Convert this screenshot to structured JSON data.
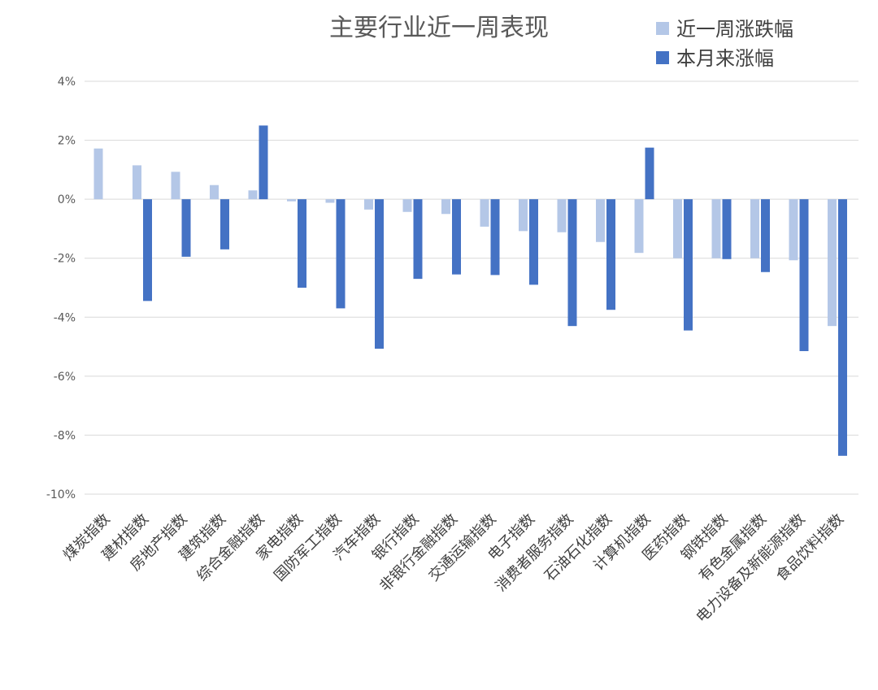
{
  "chart_data": {
    "type": "bar",
    "title": "主要行业近一周表现",
    "categories": [
      "煤炭指数",
      "建材指数",
      "房地产指数",
      "建筑指数",
      "综合金融指数",
      "家电指数",
      "国防军工指数",
      "汽车指数",
      "银行指数",
      "非银行金融指数",
      "交通运输指数",
      "电子指数",
      "消费者服务指数",
      "石油石化指数",
      "计算机指数",
      "医药指数",
      "钢铁指数",
      "有色金属指数",
      "电力设备及新能源指数",
      "食品饮料指数"
    ],
    "series": [
      {
        "name": "近一周涨跌幅",
        "color": "#b4c7e7",
        "values": [
          1.72,
          1.15,
          0.93,
          0.48,
          0.3,
          -0.07,
          -0.12,
          -0.35,
          -0.43,
          -0.5,
          -0.93,
          -1.08,
          -1.12,
          -1.45,
          -1.82,
          -2.0,
          -2.0,
          -2.0,
          -2.07,
          -4.3
        ]
      },
      {
        "name": "本月来涨幅",
        "color": "#4472c4",
        "values": [
          0,
          -3.45,
          -1.95,
          -1.7,
          2.5,
          -3.0,
          -3.7,
          -5.07,
          -2.7,
          -2.55,
          -2.57,
          -2.9,
          -4.3,
          -3.75,
          1.75,
          -4.45,
          -2.03,
          -2.47,
          -5.15,
          -8.7
        ]
      }
    ],
    "ylim": [
      -10,
      4
    ],
    "yticks": [
      4,
      2,
      0,
      -2,
      -4,
      -6,
      -8,
      -10
    ],
    "ytick_labels": [
      "4%",
      "2%",
      "0%",
      "-2%",
      "-4%",
      "-6%",
      "-8%",
      "-10%"
    ],
    "grid": true,
    "legend": "top-right"
  }
}
